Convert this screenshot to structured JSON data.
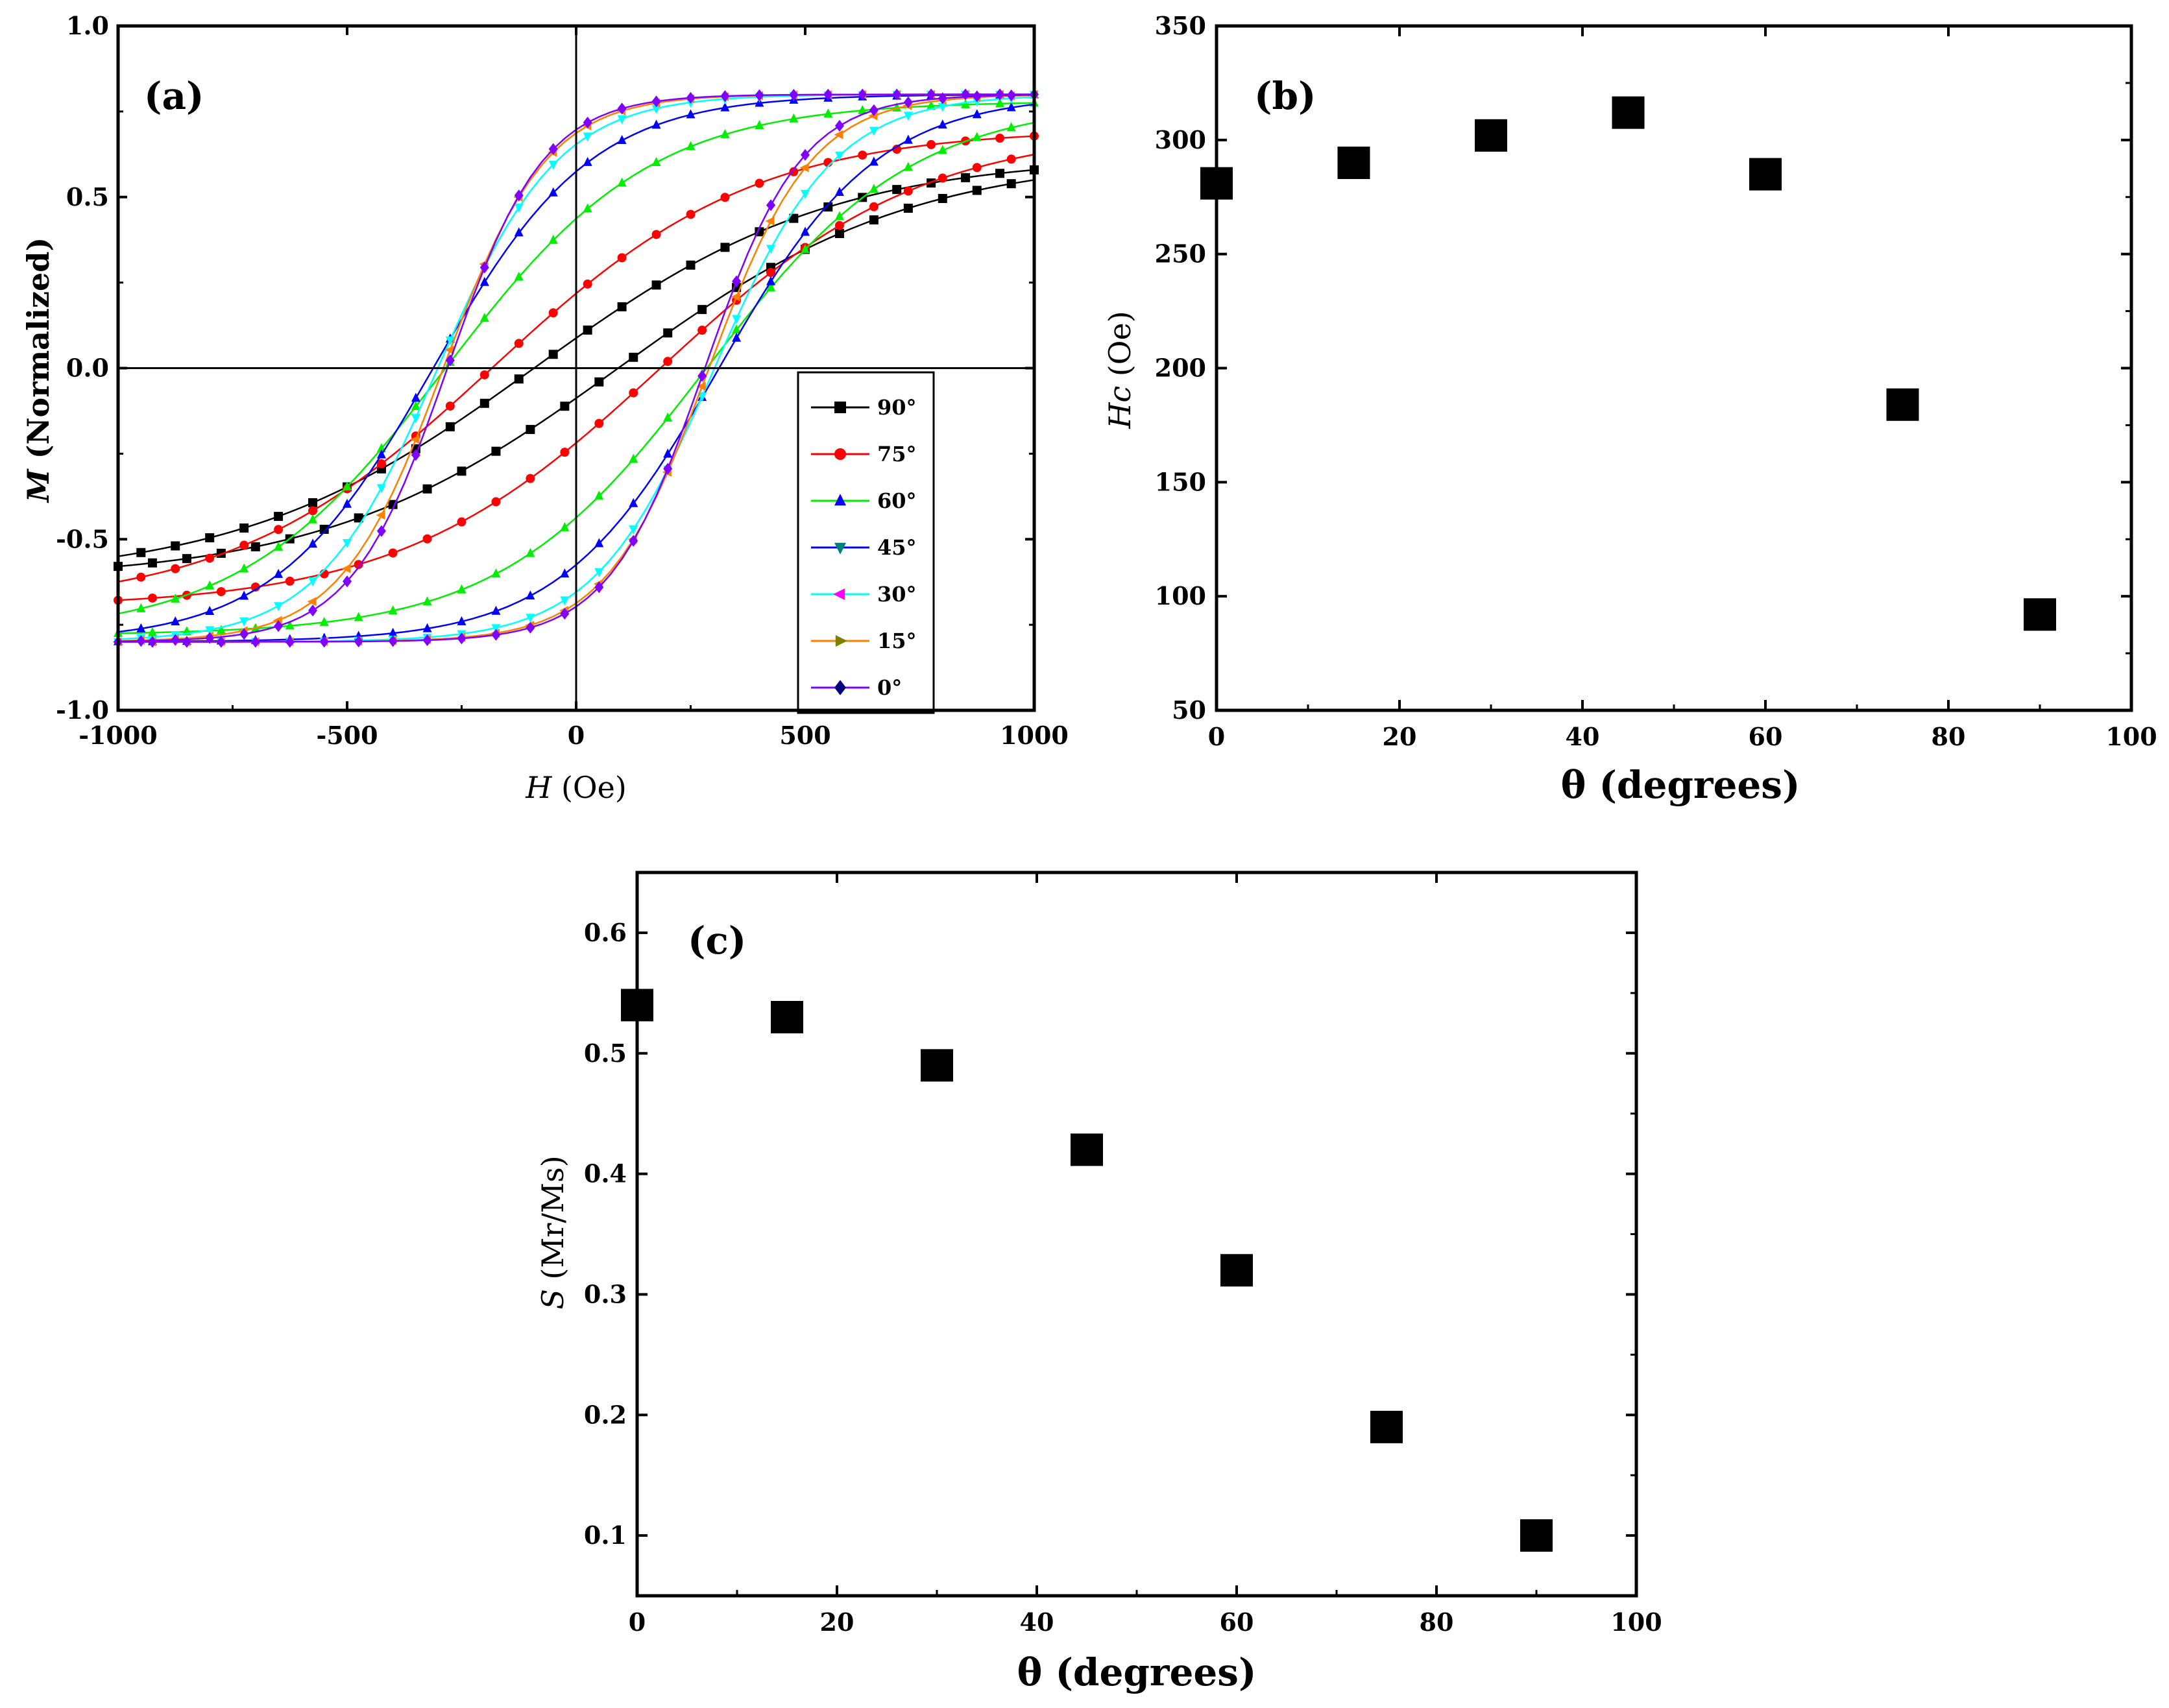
{
  "chart_data": [
    {
      "id": "a",
      "type": "line",
      "panel_label": "(a)",
      "xlabel_italic": "H",
      "xlabel_rest": " (Oe)",
      "ylabel_italic": "M",
      "ylabel_rest": " (Normalized)",
      "xlim": [
        -1000,
        1000
      ],
      "ylim": [
        -1.0,
        1.0
      ],
      "x_ticks": [
        -1000,
        -500,
        0,
        500,
        1000
      ],
      "y_ticks": [
        -1.0,
        -0.5,
        0.0,
        0.5,
        1.0
      ],
      "x_tick_labels": [
        "-1000",
        "-500",
        "0",
        "500",
        "1000"
      ],
      "y_tick_labels": [
        "-1.0",
        "-0.5",
        "0.0",
        "0.5",
        "1.0"
      ],
      "legend_position": "bottom-right",
      "series": [
        {
          "name": "90°",
          "color": "#000000",
          "marker": "square",
          "Ms": 0.62,
          "Hc": 92,
          "Mr": 0.1,
          "H0": 430
        },
        {
          "name": "75°",
          "color": "#ff0000",
          "marker": "circle",
          "Ms": 0.7,
          "Hc": 184,
          "Mr": 0.19,
          "H0": 380
        },
        {
          "name": "60°",
          "color": "#00ee00",
          "marker": "triangle-up",
          "Ms": 0.78,
          "Hc": 285,
          "Mr": 0.32,
          "H0": 300
        },
        {
          "name": "45°",
          "color": "#0000ff",
          "marker": "triangle-up",
          "Ms": 0.8,
          "Hc": 312,
          "Mr": 0.42,
          "H0": 230
        },
        {
          "name": "30°",
          "color": "#00ffff",
          "marker": "triangle-down",
          "Ms": 0.8,
          "Hc": 302,
          "Mr": 0.49,
          "H0": 175
        },
        {
          "name": "15°",
          "color": "#ff7f00",
          "marker": "triangle-left",
          "Ms": 0.8,
          "Hc": 290,
          "Mr": 0.53,
          "H0": 150
        },
        {
          "name": "0°",
          "color": "#7f00ff",
          "marker": "diamond",
          "Ms": 0.8,
          "Hc": 281,
          "Mr": 0.54,
          "H0": 140
        }
      ],
      "legend_entries": [
        {
          "name": "90°",
          "line": "#000000",
          "marker": "square",
          "mcolor": "#000000"
        },
        {
          "name": "75°",
          "line": "#ff0000",
          "marker": "circle",
          "mcolor": "#ff0000"
        },
        {
          "name": "60°",
          "line": "#00ee00",
          "marker": "triangle-up",
          "mcolor": "#0000ff"
        },
        {
          "name": "45°",
          "line": "#0000ff",
          "marker": "triangle-down",
          "mcolor": "#007f7f"
        },
        {
          "name": "30°",
          "line": "#00ffff",
          "marker": "triangle-left",
          "mcolor": "#ff00ff"
        },
        {
          "name": "15°",
          "line": "#ff7f00",
          "marker": "triangle-right",
          "mcolor": "#7f7f00"
        },
        {
          "name": "0°",
          "line": "#7f00ff",
          "marker": "diamond",
          "mcolor": "#00007f"
        }
      ]
    },
    {
      "id": "b",
      "type": "scatter",
      "panel_label": "(b)",
      "xlabel": "θ (degrees)",
      "ylabel_italic": "Hc",
      "ylabel_rest": " (Oe)",
      "xlim": [
        0,
        100
      ],
      "ylim": [
        50,
        350
      ],
      "x_ticks": [
        0,
        20,
        40,
        60,
        80,
        100
      ],
      "y_ticks": [
        50,
        100,
        150,
        200,
        250,
        300,
        350
      ],
      "x_tick_labels": [
        "0",
        "20",
        "40",
        "60",
        "80",
        "100"
      ],
      "y_tick_labels": [
        "50",
        "100",
        "150",
        "200",
        "250",
        "300",
        "350"
      ],
      "x": [
        0,
        15,
        30,
        45,
        60,
        75,
        90
      ],
      "y": [
        281,
        290,
        302,
        312,
        285,
        184,
        92
      ]
    },
    {
      "id": "c",
      "type": "scatter",
      "panel_label": "(c)",
      "xlabel": "θ (degrees)",
      "ylabel_italic": "S",
      "ylabel_rest": " (Mr/Ms)",
      "xlim": [
        0,
        100
      ],
      "ylim": [
        0.05,
        0.65
      ],
      "x_ticks": [
        0,
        20,
        40,
        60,
        80,
        100
      ],
      "y_ticks": [
        0.1,
        0.2,
        0.3,
        0.4,
        0.5,
        0.6
      ],
      "x_tick_labels": [
        "0",
        "20",
        "40",
        "60",
        "80",
        "100"
      ],
      "y_tick_labels": [
        "0.1",
        "0.2",
        "0.3",
        "0.4",
        "0.5",
        "0.6"
      ],
      "x": [
        0,
        15,
        30,
        45,
        60,
        75,
        90
      ],
      "y": [
        0.54,
        0.53,
        0.49,
        0.42,
        0.32,
        0.19,
        0.1
      ]
    }
  ]
}
